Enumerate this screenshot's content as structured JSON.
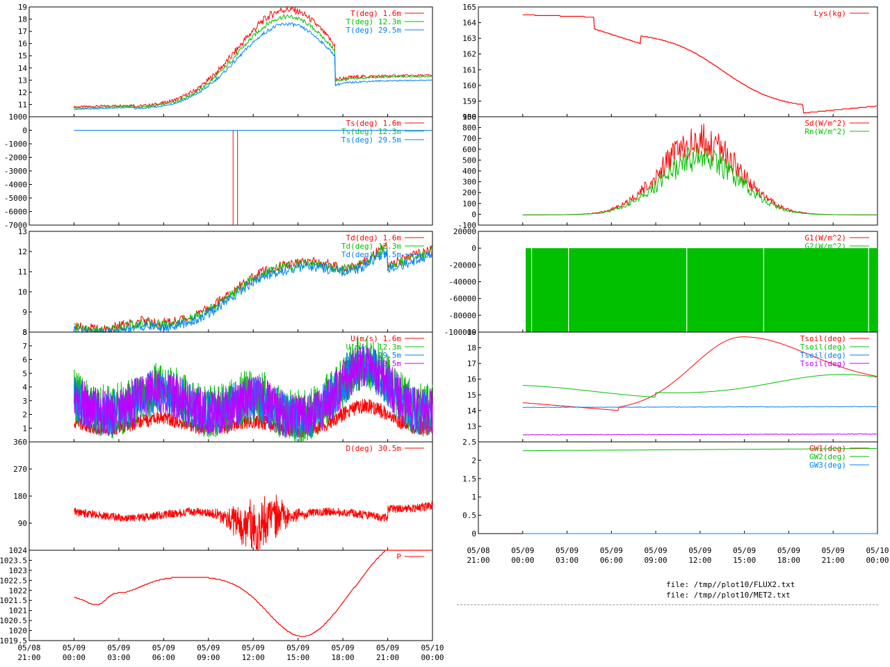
{
  "colors": {
    "red": "#ff0000",
    "green": "#00c000",
    "blue": "#0080ff",
    "magenta": "#c000ff"
  },
  "files": [
    "file: /tmp//plot10/FLUX2.txt",
    "file: /tmp//plot10/MET2.txt"
  ],
  "chart_data": [
    {
      "id": "T",
      "type": "line",
      "ylim": [
        10,
        19
      ],
      "yticks": [
        11,
        12,
        13,
        14,
        15,
        16,
        17,
        18,
        19
      ],
      "series": [
        {
          "name": "T(deg)  1.6m",
          "color": "red",
          "kind": "temp",
          "base": 10.8,
          "amp": 8.0,
          "floor": 13.3,
          "noise": 0.25
        },
        {
          "name": "T(deg) 12.3m",
          "color": "green",
          "kind": "temp",
          "base": 10.7,
          "amp": 7.5,
          "floor": 13.2,
          "noise": 0.15
        },
        {
          "name": "T(deg) 29.5m",
          "color": "blue",
          "kind": "temp",
          "base": 10.6,
          "amp": 7.0,
          "floor": 12.9,
          "noise": 0.12
        }
      ]
    },
    {
      "id": "Ts",
      "type": "line",
      "ylim": [
        -7000,
        1000
      ],
      "yticks": [
        1000,
        0,
        -1000,
        -2000,
        -3000,
        -4000,
        -5000,
        -6000,
        -7000
      ],
      "series": [
        {
          "name": "Ts(deg)  1.6m",
          "color": "red",
          "kind": "flatspike",
          "level": 0
        },
        {
          "name": "Ts(deg) 12.3m",
          "color": "green",
          "kind": "flat",
          "level": 0
        },
        {
          "name": "Ts(deg) 29.5m",
          "color": "blue",
          "kind": "flat",
          "level": 0
        }
      ]
    },
    {
      "id": "Td",
      "type": "line",
      "ylim": [
        8,
        13
      ],
      "yticks": [
        8,
        9,
        10,
        11,
        12,
        13
      ],
      "series": [
        {
          "name": "Td(deg)  1.6m",
          "color": "red",
          "kind": "dew",
          "offset": 0.15,
          "noise": 0.25
        },
        {
          "name": "Td(deg) 12.3m",
          "color": "green",
          "kind": "dew",
          "offset": 0.05,
          "noise": 0.25
        },
        {
          "name": "Td(deg) 29.5m",
          "color": "blue",
          "kind": "dew",
          "offset": -0.1,
          "noise": 0.25
        }
      ]
    },
    {
      "id": "U",
      "type": "line",
      "ylim": [
        0,
        8
      ],
      "yticks": [
        1,
        2,
        3,
        4,
        5,
        6,
        7,
        8
      ],
      "series": [
        {
          "name": "U(m/s)  1.6m",
          "color": "red",
          "kind": "wind",
          "scale": 0.45,
          "noise": 1.2
        },
        {
          "name": "U(m/s) 12.3m",
          "color": "green",
          "kind": "wind",
          "scale": 1.0,
          "noise": 2.0
        },
        {
          "name": "U(m/s) 29.5m",
          "color": "blue",
          "kind": "wind",
          "scale": 0.95,
          "noise": 1.8
        },
        {
          "name": "U(m/s) 30.5m",
          "color": "magenta",
          "kind": "wind",
          "scale": 0.95,
          "noise": 1.8
        }
      ]
    },
    {
      "id": "D",
      "type": "line",
      "ylim": [
        0,
        360
      ],
      "yticks": [
        90,
        180,
        270,
        360
      ],
      "series": [
        {
          "name": "D(deg)  30.5m",
          "color": "red",
          "kind": "dir"
        }
      ]
    },
    {
      "id": "P",
      "type": "line",
      "ylim": [
        1019.5,
        1024
      ],
      "yticks": [
        1019.5,
        1020,
        1020.5,
        1021,
        1021.5,
        1022,
        1022.5,
        1023,
        1023.5,
        1024
      ],
      "series": [
        {
          "name": "P",
          "color": "red",
          "kind": "pres"
        }
      ]
    },
    {
      "id": "Lys",
      "type": "line",
      "ylim": [
        158,
        165
      ],
      "yticks": [
        158,
        159,
        160,
        161,
        162,
        163,
        164,
        165
      ],
      "series": [
        {
          "name": "Lys(kg)",
          "color": "red",
          "kind": "lys"
        }
      ]
    },
    {
      "id": "Rad",
      "type": "line",
      "ylim": [
        -100,
        900
      ],
      "yticks": [
        -100,
        0,
        100,
        200,
        300,
        400,
        500,
        600,
        700,
        800,
        900
      ],
      "series": [
        {
          "name": "Sd(W/m^2)",
          "color": "red",
          "kind": "rad",
          "amp": 680
        },
        {
          "name": "Rn(W/m^2)",
          "color": "green",
          "kind": "rad",
          "amp": 520
        }
      ]
    },
    {
      "id": "G",
      "type": "line",
      "ylim": [
        -100000,
        20000
      ],
      "yticks": [
        20000,
        0,
        -20000,
        -40000,
        -60000,
        -80000,
        -100000
      ],
      "series": [
        {
          "name": "G1(W/m^2)",
          "color": "red",
          "kind": "none"
        },
        {
          "name": "G2(W/m^2)",
          "color": "green",
          "kind": "gfill"
        }
      ]
    },
    {
      "id": "Tsoil",
      "type": "line",
      "ylim": [
        12,
        19
      ],
      "yticks": [
        13,
        14,
        15,
        16,
        17,
        18,
        19
      ],
      "series": [
        {
          "name": "Tsoil(deg)",
          "color": "red",
          "kind": "soil1"
        },
        {
          "name": "Tsoil(deg)",
          "color": "green",
          "kind": "soil2"
        },
        {
          "name": "Tsoil(deg)",
          "color": "blue",
          "kind": "soil3"
        },
        {
          "name": "Tsoil(deg)",
          "color": "magenta",
          "kind": "soil4"
        }
      ]
    },
    {
      "id": "GW",
      "type": "line",
      "ylim": [
        0,
        2.5
      ],
      "yticks": [
        0,
        0.5,
        1,
        1.5,
        2,
        2.5
      ],
      "series": [
        {
          "name": "GW1(deg)",
          "color": "red",
          "kind": "none"
        },
        {
          "name": "GW2(deg)",
          "color": "green",
          "kind": "gw2"
        },
        {
          "name": "GW3(deg)",
          "color": "blue",
          "kind": "gw3"
        }
      ]
    }
  ],
  "x_ticks": [
    {
      "d": "05/08",
      "t": "21:00"
    },
    {
      "d": "05/09",
      "t": "00:00"
    },
    {
      "d": "05/09",
      "t": "03:00"
    },
    {
      "d": "05/09",
      "t": "06:00"
    },
    {
      "d": "05/09",
      "t": "09:00"
    },
    {
      "d": "05/09",
      "t": "12:00"
    },
    {
      "d": "05/09",
      "t": "15:00"
    },
    {
      "d": "05/09",
      "t": "18:00"
    },
    {
      "d": "05/09",
      "t": "21:00"
    },
    {
      "d": "05/10",
      "t": "00:00"
    }
  ]
}
